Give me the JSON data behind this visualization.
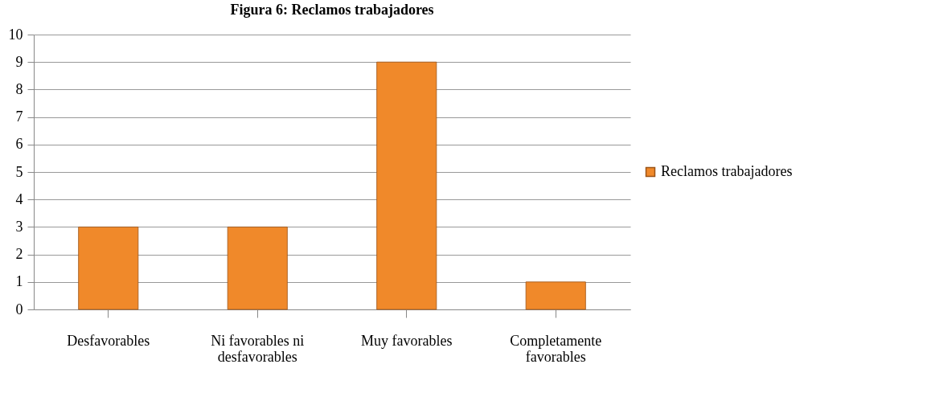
{
  "chart_data": {
    "type": "bar",
    "title": "Figura 6: Reclamos trabajadores",
    "categories": [
      "Desfavorables",
      "Ni favorables ni desfavorables",
      "Muy favorables",
      "Completamente favorables"
    ],
    "series": [
      {
        "name": "Reclamos trabajadores",
        "color": "#f0892a",
        "values": [
          3,
          3,
          9,
          1
        ]
      }
    ],
    "ylim": [
      0,
      10
    ],
    "yticks": [
      0,
      1,
      2,
      3,
      4,
      5,
      6,
      7,
      8,
      9,
      10
    ],
    "grid": "y",
    "legend": "right"
  }
}
